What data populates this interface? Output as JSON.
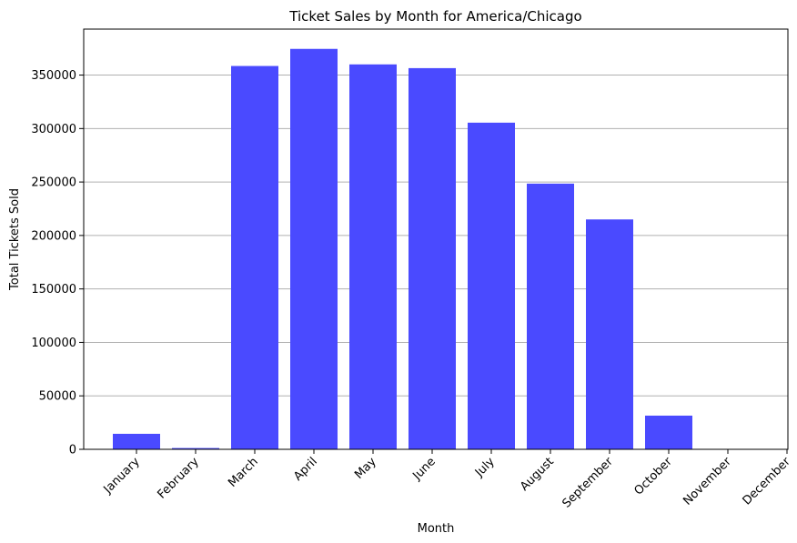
{
  "chart_data": {
    "type": "bar",
    "title": "Ticket Sales by Month for America/Chicago",
    "xlabel": "Month",
    "ylabel": "Total Tickets Sold",
    "categories": [
      "January",
      "February",
      "March",
      "April",
      "May",
      "June",
      "July",
      "August",
      "September",
      "October",
      "November",
      "December"
    ],
    "values": [
      14500,
      1200,
      358500,
      374500,
      360000,
      356500,
      305500,
      248500,
      215000,
      31500,
      0,
      0
    ],
    "ylim": [
      0,
      393000
    ],
    "yticks": [
      0,
      50000,
      100000,
      150000,
      200000,
      250000,
      300000,
      350000
    ],
    "grid": "y",
    "bar_color": "#4a4aff"
  }
}
